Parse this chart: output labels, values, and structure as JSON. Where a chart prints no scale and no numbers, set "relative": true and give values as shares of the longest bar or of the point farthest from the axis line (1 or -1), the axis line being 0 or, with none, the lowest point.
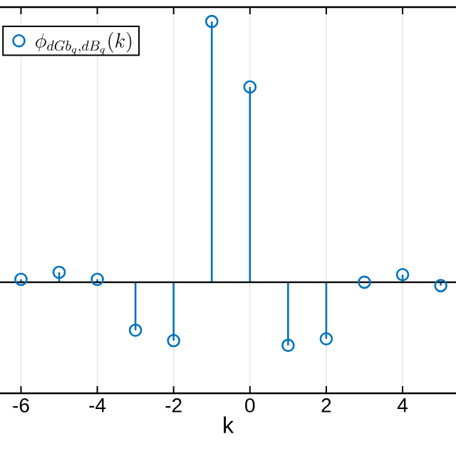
{
  "chart_data": {
    "type": "lollipop",
    "relative": true,
    "xlabel": "k",
    "x": [
      -6,
      -5,
      -4,
      -3,
      -2,
      -1,
      0,
      1,
      2,
      3,
      4,
      5
    ],
    "series": [
      {
        "name": "\\phi_{dGb_q, dB_q}(k)",
        "color": "#0072bd",
        "values": [
          0.011,
          0.038,
          0.011,
          -0.184,
          -0.224,
          1,
          0.749,
          -0.242,
          -0.217,
          0,
          0.029,
          -0.013
        ]
      }
    ],
    "xlim": [
      -6.55,
      5.4
    ],
    "xticks": [
      -6,
      -4,
      -2,
      0,
      2,
      4
    ],
    "grid": true,
    "legend": "top left",
    "marker": "circle"
  }
}
